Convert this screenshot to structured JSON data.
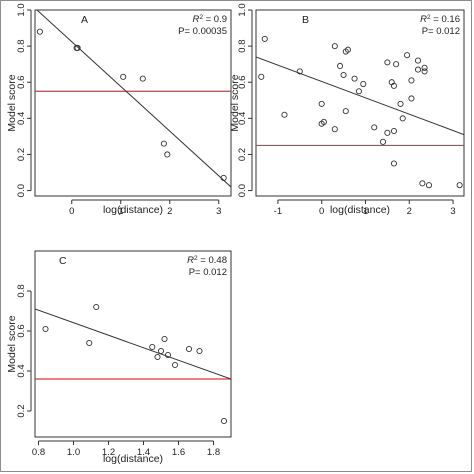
{
  "colors": {
    "axis": "#333333",
    "point": "#333333",
    "regression": "#333333",
    "threshold": "#e8303a"
  },
  "chart_data": [
    {
      "type": "scatter",
      "panel": "A",
      "xlabel": "log(distance)",
      "ylabel": "Model score",
      "r2_label": "R",
      "r2_value": "= 0.9",
      "p_label": "P= 0.00035",
      "xlim": [
        -0.75,
        3.25
      ],
      "ylim": [
        -0.03,
        1.0
      ],
      "xticks": [
        "0",
        "1",
        "2",
        "3"
      ],
      "yticks": [
        "0.0",
        "0.2",
        "0.4",
        "0.6",
        "0.8",
        "1.0"
      ],
      "points": [
        {
          "x": -0.65,
          "y": 0.88
        },
        {
          "x": 0.1,
          "y": 0.79
        },
        {
          "x": 0.12,
          "y": 0.79
        },
        {
          "x": 1.05,
          "y": 0.63
        },
        {
          "x": 1.45,
          "y": 0.62
        },
        {
          "x": 1.88,
          "y": 0.26
        },
        {
          "x": 1.95,
          "y": 0.2
        },
        {
          "x": 3.1,
          "y": 0.07
        }
      ],
      "regression": {
        "x1": -0.75,
        "y1": 1.01,
        "x2": 3.25,
        "y2": 0.02
      },
      "threshold": 0.55
    },
    {
      "type": "scatter",
      "panel": "B",
      "xlabel": "log(distance)",
      "ylabel": "Model score",
      "r2_label": "R",
      "r2_value": "= 0.16",
      "p_label": "P= 0.012",
      "xlim": [
        -1.5,
        3.25
      ],
      "ylim": [
        -0.03,
        1.0
      ],
      "xticks": [
        "-1",
        "0",
        "1",
        "2",
        "3"
      ],
      "yticks": [
        "0.0",
        "0.2",
        "0.4",
        "0.6",
        "0.8",
        "1.0"
      ],
      "points": [
        {
          "x": -1.3,
          "y": 0.84
        },
        {
          "x": -1.38,
          "y": 0.63
        },
        {
          "x": -0.85,
          "y": 0.42
        },
        {
          "x": -0.5,
          "y": 0.66
        },
        {
          "x": 0.0,
          "y": 0.48
        },
        {
          "x": 0.05,
          "y": 0.38
        },
        {
          "x": 0.0,
          "y": 0.37
        },
        {
          "x": 0.3,
          "y": 0.8
        },
        {
          "x": 0.3,
          "y": 0.34
        },
        {
          "x": 0.42,
          "y": 0.69
        },
        {
          "x": 0.5,
          "y": 0.64
        },
        {
          "x": 0.55,
          "y": 0.77
        },
        {
          "x": 0.6,
          "y": 0.78
        },
        {
          "x": 0.55,
          "y": 0.44
        },
        {
          "x": 0.75,
          "y": 0.62
        },
        {
          "x": 0.85,
          "y": 0.55
        },
        {
          "x": 0.95,
          "y": 0.59
        },
        {
          "x": 1.2,
          "y": 0.35
        },
        {
          "x": 1.4,
          "y": 0.27
        },
        {
          "x": 1.5,
          "y": 0.71
        },
        {
          "x": 1.5,
          "y": 0.32
        },
        {
          "x": 1.6,
          "y": 0.6
        },
        {
          "x": 1.65,
          "y": 0.58
        },
        {
          "x": 1.7,
          "y": 0.7
        },
        {
          "x": 1.65,
          "y": 0.33
        },
        {
          "x": 1.65,
          "y": 0.15
        },
        {
          "x": 1.8,
          "y": 0.48
        },
        {
          "x": 1.85,
          "y": 0.4
        },
        {
          "x": 1.95,
          "y": 0.75
        },
        {
          "x": 2.05,
          "y": 0.61
        },
        {
          "x": 2.05,
          "y": 0.51
        },
        {
          "x": 2.2,
          "y": 0.67
        },
        {
          "x": 2.2,
          "y": 0.72
        },
        {
          "x": 2.35,
          "y": 0.66
        },
        {
          "x": 2.35,
          "y": 0.68
        },
        {
          "x": 2.3,
          "y": 0.04
        },
        {
          "x": 2.45,
          "y": 0.03
        },
        {
          "x": 3.15,
          "y": 0.03
        }
      ],
      "regression": {
        "x1": -1.5,
        "y1": 0.74,
        "x2": 3.25,
        "y2": 0.31
      },
      "threshold": 0.25
    },
    {
      "type": "scatter",
      "panel": "C",
      "xlabel": "log(distance)",
      "ylabel": "Model score",
      "r2_label": "R",
      "r2_value": "= 0.48",
      "p_label": "P= 0.012",
      "xlim": [
        0.78,
        1.9
      ],
      "ylim": [
        0.07,
        1.0
      ],
      "xticks": [
        "0.8",
        "1.0",
        "1.2",
        "1.4",
        "1.6",
        "1.8"
      ],
      "yticks": [
        "0.2",
        "0.4",
        "0.6",
        "0.8"
      ],
      "points": [
        {
          "x": 0.84,
          "y": 0.61
        },
        {
          "x": 1.09,
          "y": 0.54
        },
        {
          "x": 1.13,
          "y": 0.72
        },
        {
          "x": 1.45,
          "y": 0.52
        },
        {
          "x": 1.48,
          "y": 0.47
        },
        {
          "x": 1.5,
          "y": 0.5
        },
        {
          "x": 1.52,
          "y": 0.56
        },
        {
          "x": 1.54,
          "y": 0.48
        },
        {
          "x": 1.58,
          "y": 0.43
        },
        {
          "x": 1.66,
          "y": 0.51
        },
        {
          "x": 1.72,
          "y": 0.5
        },
        {
          "x": 1.86,
          "y": 0.15
        }
      ],
      "regression": {
        "x1": 0.78,
        "y1": 0.71,
        "x2": 1.9,
        "y2": 0.36
      },
      "threshold": 0.36
    }
  ]
}
